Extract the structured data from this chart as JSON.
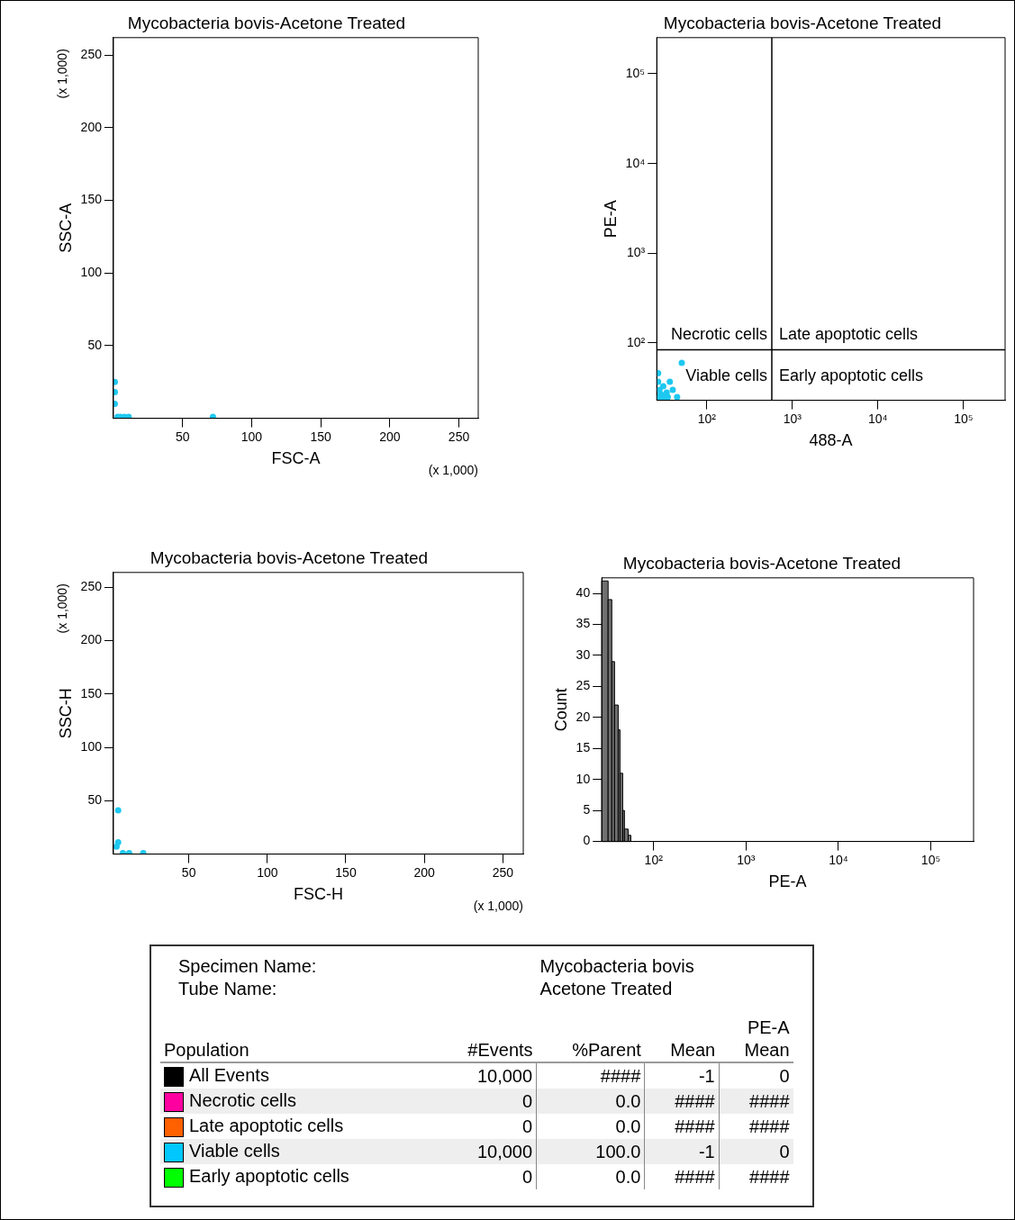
{
  "chart_data": [
    {
      "type": "scatter",
      "title": "Mycobacteria bovis-Acetone Treated",
      "xlabel": "FSC-A",
      "ylabel": "SSC-A",
      "x": [
        1,
        1,
        1,
        3,
        5,
        8,
        11,
        72
      ],
      "values": [
        25,
        18,
        10,
        1,
        1,
        1,
        1,
        1
      ],
      "color": "#1ec8f0",
      "marker": "circle",
      "xlim": [
        0,
        264
      ],
      "xticks": [
        50,
        100,
        150,
        200,
        250
      ],
      "ylim": [
        0,
        262
      ],
      "yticks": [
        50,
        100,
        150,
        200,
        250
      ],
      "annotations": [
        "(x 1,000)",
        "(x 1,000)"
      ]
    },
    {
      "type": "scatter",
      "title": "Mycobacteria bovis-Acetone Treated",
      "xlabel": "488-A",
      "ylabel": "PE-A",
      "x": [
        51,
        27,
        27,
        28,
        29,
        31,
        34,
        35,
        37,
        40,
        31,
        45,
        28
      ],
      "values": [
        60,
        46,
        37,
        30,
        27,
        33,
        28,
        25,
        37,
        30,
        25,
        25,
        25
      ],
      "color": "#1ec8f0",
      "marker": "circle",
      "log": "xy",
      "xlim": [
        26,
        306000
      ],
      "xticks": [
        {
          "value": 100,
          "label": "10²"
        },
        {
          "value": 1000,
          "label": "10³"
        },
        {
          "value": 10000,
          "label": "10⁴"
        },
        {
          "value": 100000,
          "label": "10⁵"
        }
      ],
      "ylim": [
        23,
        253000
      ],
      "yticks": [
        {
          "value": 100,
          "label": "10²"
        },
        {
          "value": 1000,
          "label": "10³"
        },
        {
          "value": 10000,
          "label": "10⁴"
        },
        {
          "value": 100000,
          "label": "10⁵"
        }
      ],
      "ref_lines": [
        {
          "axis": "x",
          "value": 575
        },
        {
          "axis": "y",
          "value": 84
        }
      ],
      "annotations": [
        "Necrotic cells",
        "Late apoptotic cells",
        "Viable cells",
        "Early apoptotic cells"
      ]
    },
    {
      "type": "scatter",
      "title": "Mycobacteria bovis-Acetone Treated",
      "xlabel": "FSC-H",
      "ylabel": "SSC-H",
      "x": [
        5,
        5,
        4,
        8,
        12,
        21
      ],
      "values": [
        41,
        11,
        7,
        1,
        1,
        1
      ],
      "color": "#1ec8f0",
      "marker": "circle",
      "xlim": [
        2,
        263
      ],
      "xticks": [
        50,
        100,
        150,
        200,
        250
      ],
      "ylim": [
        0,
        264
      ],
      "yticks": [
        50,
        100,
        150,
        200,
        250
      ],
      "annotations": [
        "(x 1,000)",
        "(x 1,000)"
      ]
    },
    {
      "type": "histogram",
      "title": "Mycobacteria bovis-Acetone Treated",
      "xlabel": "PE-A",
      "ylabel": "Count",
      "bins": [
        27.5,
        32.2,
        35.3,
        37.8,
        41.4,
        43.3,
        46.3,
        48.4,
        53.1,
        56.7
      ],
      "values": [
        42,
        39,
        29,
        22,
        18,
        11,
        5,
        2,
        1
      ],
      "color": "#707070",
      "log": "x",
      "xlim": [
        27.5,
        290000
      ],
      "xticks": [
        {
          "value": 100,
          "label": "10²"
        },
        {
          "value": 1000,
          "label": "10³"
        },
        {
          "value": 10000,
          "label": "10⁴"
        },
        {
          "value": 100000,
          "label": "10⁵"
        }
      ],
      "ylim": [
        0,
        42.5
      ],
      "yticks": [
        0,
        5,
        10,
        15,
        20,
        25,
        30,
        35,
        40
      ]
    },
    {
      "type": "other",
      "categories": [
        "All Events",
        "Necrotic cells",
        "Late apoptotic cells",
        "Viable cells",
        "Early apoptotic cells"
      ],
      "colors": [
        "#000000",
        "#ff00a0",
        "#ff6000",
        "#00c8ff",
        "#00ff00"
      ],
      "annotations": [
        "Specimen Name:",
        "Mycobacteria bovis",
        "Tube Name:",
        "Acetone Treated",
        "Population",
        "#Events",
        "%Parent",
        "Mean",
        "PE-A",
        "Mean",
        "10,000",
        "####",
        "-1",
        "0",
        "0",
        "0.0",
        "####",
        "####",
        "0",
        "0.0",
        "####",
        "####",
        "10,000",
        "100.0",
        "-1",
        "0",
        "0",
        "0.0",
        "####",
        "####"
      ]
    }
  ]
}
